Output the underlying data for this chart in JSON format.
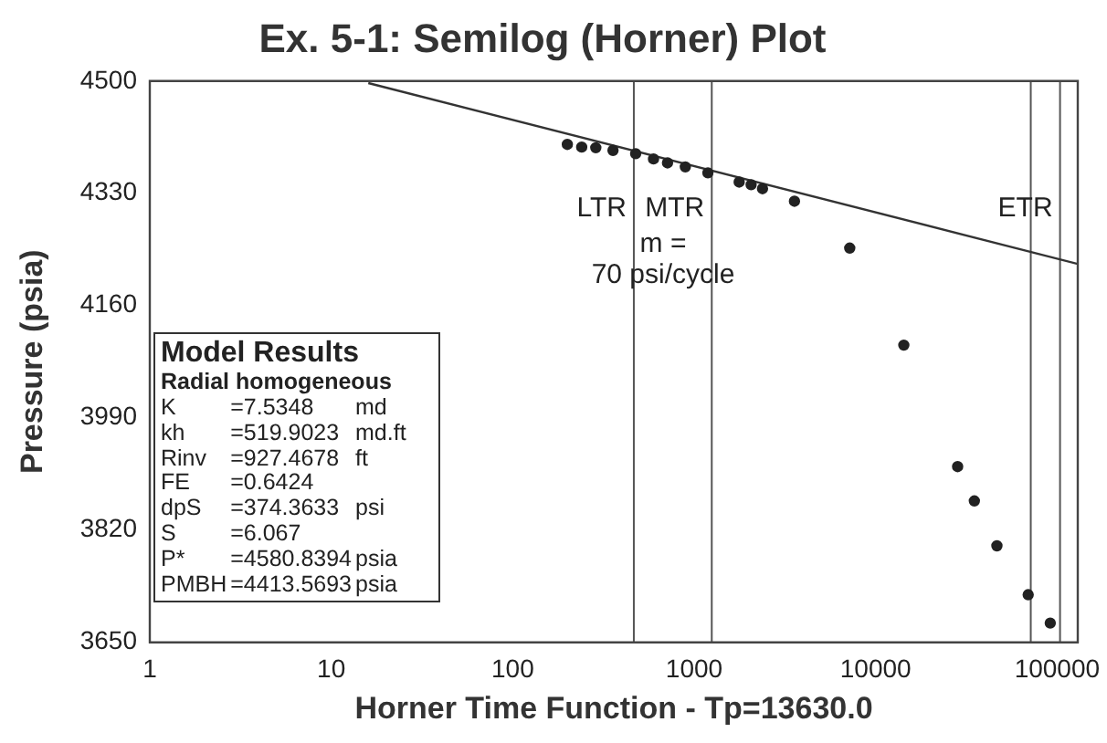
{
  "chart_data": {
    "type": "scatter",
    "title": "Ex. 5-1: Semilog (Horner) Plot",
    "xlabel": "Horner Time Function - Tp=13630.0",
    "ylabel": "Pressure (psia)",
    "log": "x",
    "xlim": [
      1,
      130000
    ],
    "xticks": [
      1,
      10,
      100,
      1000,
      10000,
      100000
    ],
    "ylim": [
      3650,
      4500
    ],
    "yticks": [
      4500,
      4330,
      4160,
      3990,
      3820,
      3650
    ],
    "grid": false,
    "legend": false,
    "marker": "circle",
    "series": [
      {
        "type": "scatter",
        "color": "#222222",
        "x": [
          200,
          240,
          287,
          357,
          476,
          597,
          713,
          894,
          1190,
          1770,
          2060,
          2380,
          3570,
          7200,
          14300,
          28300,
          35000,
          46600,
          69300,
          91700
        ],
        "values": [
          4404,
          4400,
          4399,
          4395,
          4390,
          4382,
          4376,
          4370,
          4361,
          4347,
          4343,
          4337,
          4318,
          4247,
          4100,
          3916,
          3864,
          3796,
          3722,
          3679
        ]
      },
      {
        "type": "line",
        "color": "#333333",
        "marker": "none",
        "x": [
          16,
          130000
        ],
        "values": [
          4497,
          4223
        ]
      }
    ],
    "ref_lines": [
      {
        "axis": "x",
        "value": 465,
        "color": "#555555",
        "label": "LTR"
      },
      {
        "axis": "x",
        "value": 1250,
        "color": "#555555",
        "label": "MTR"
      },
      {
        "axis": "x",
        "value": 71600,
        "color": "#555555"
      },
      {
        "axis": "x",
        "value": 103800,
        "color": "#555555",
        "label": "ETR"
      }
    ],
    "annotations": [
      "m =\n70 psi/cycle",
      "Model Results",
      "Radial homogeneous",
      "K\t=7.5348\tmd",
      "kh\t=519.9023\tmd.ft",
      "Rinv\t=927.4678\tft",
      "FE\t=0.6424\t",
      "dpS\t=374.3633\tpsi",
      "S\t=6.067\t",
      "P*\t=4580.8394\tpsia",
      "PMBH\t=4413.5693\tpsia"
    ]
  }
}
